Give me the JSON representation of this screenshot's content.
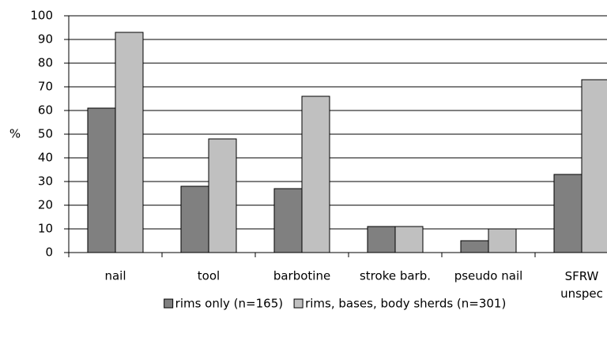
{
  "chart_data": {
    "type": "bar",
    "ylabel": "%",
    "categories": [
      "nail",
      "tool",
      "barbotine",
      "stroke barb.",
      "pseudo nail",
      "SFRW unspec"
    ],
    "series": [
      {
        "name": "rims only (n=165)",
        "color": "#808080",
        "values": [
          61,
          28,
          27,
          11,
          5,
          33
        ]
      },
      {
        "name": "rims, bases, body sherds (n=301)",
        "color": "#c0c0c0",
        "values": [
          93,
          48,
          66,
          11,
          10,
          73
        ]
      }
    ],
    "ylim": [
      0,
      100
    ],
    "yticks": [
      0,
      10,
      20,
      30,
      40,
      50,
      60,
      70,
      80,
      90,
      100
    ],
    "grid": true,
    "legend": "bottom"
  }
}
